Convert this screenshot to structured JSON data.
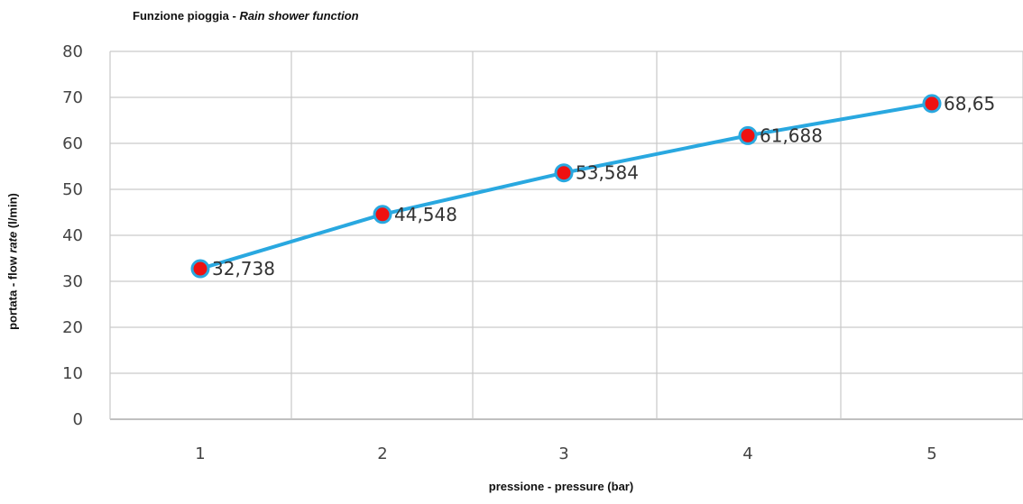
{
  "chart_data": {
    "type": "line",
    "title_main": "Funzione pioggia - ",
    "title_italic": "Rain shower function",
    "xlabel": "pressione - pressure  (bar)",
    "ylabel_pre": "portata - flow ",
    "ylabel_italic": "rate",
    "ylabel_post": " (l/min)",
    "categories": [
      "1",
      "2",
      "3",
      "4",
      "5"
    ],
    "x": [
      1,
      2,
      3,
      4,
      5
    ],
    "values": [
      32.738,
      44.548,
      53.584,
      61.688,
      68.65
    ],
    "data_labels": [
      "32,738",
      "44,548",
      "53,584",
      "61,688",
      "68,65"
    ],
    "yticks": [
      "0",
      "10",
      "20",
      "30",
      "40",
      "50",
      "60",
      "70",
      "80"
    ],
    "ylim": [
      0,
      80
    ],
    "grid": true,
    "line_color": "#29a8e0",
    "marker_color": "#ee1111"
  }
}
